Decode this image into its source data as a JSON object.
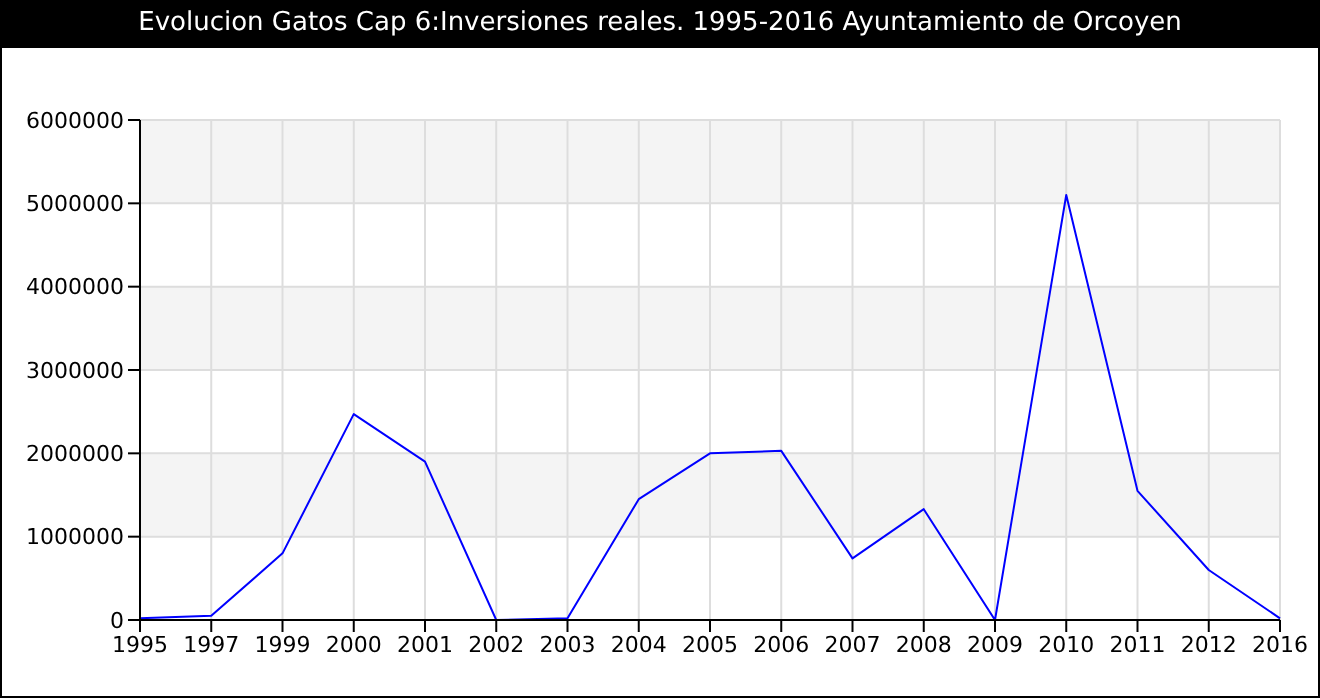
{
  "chart_data": {
    "type": "line",
    "title": "Evolucion Gatos Cap 6:Inversiones reales. 1995-2016 Ayuntamiento de Orcoyen",
    "categories": [
      "1995",
      "1997",
      "1999",
      "2000",
      "2001",
      "2002",
      "2003",
      "2004",
      "2005",
      "2006",
      "2007",
      "2008",
      "2009",
      "2010",
      "2011",
      "2012",
      "2016"
    ],
    "values": [
      20000,
      50000,
      800000,
      2470000,
      1900000,
      0,
      20000,
      1450000,
      2000000,
      2030000,
      740000,
      1330000,
      0,
      5100000,
      1550000,
      600000,
      20000
    ],
    "color": "#0000ff",
    "ylim": [
      0,
      6000000
    ],
    "yticks": [
      0,
      1000000,
      2000000,
      3000000,
      4000000,
      5000000,
      6000000
    ],
    "grid": true,
    "marker": "none"
  }
}
